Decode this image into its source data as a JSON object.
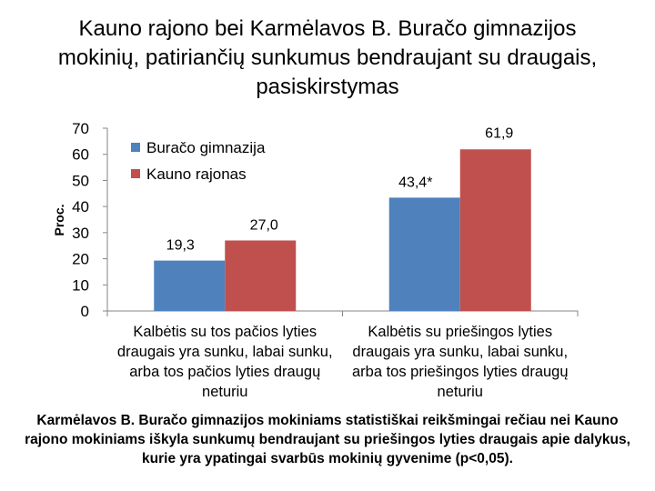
{
  "chart_data": {
    "type": "bar",
    "title": "Kauno rajono bei Karmėlavos B. Buračo gimnazijos mokinių, patiriančių sunkumus bendraujant su draugais, pasiskirstymas",
    "ylabel": "Proc.",
    "xlabel": "",
    "ylim": [
      0,
      70
    ],
    "yticks": [
      0,
      10,
      20,
      30,
      40,
      50,
      60,
      70
    ],
    "categories": [
      [
        "Kalbėtis su tos pačios lyties",
        "draugais yra sunku, labai sunku,",
        "arba tos pačios lyties draugų",
        "neturiu"
      ],
      [
        "Kalbėtis su priešingos lyties",
        "draugais yra sunku, labai sunku,",
        "arba tos priešingos lyties draugų",
        "neturiu"
      ]
    ],
    "series": [
      {
        "name": "Buračo gimnazija",
        "color": "#4f81bd",
        "values": [
          19.3,
          43.4
        ],
        "labels": [
          "19,3",
          "43,4*"
        ]
      },
      {
        "name": "Kauno rajonas",
        "color": "#c0504d",
        "values": [
          27.0,
          61.9
        ],
        "labels": [
          "27,0",
          "61,9"
        ]
      }
    ],
    "legend": "top-left",
    "grid": false,
    "note": "Karmėlavos B. Buračo gimnazijos mokiniams statistiškai reikšmingai rečiau nei Kauno rajono mokiniams iškyla sunkumų bendraujant su priešingos lyties draugais apie dalykus, kurie yra ypatingai svarbūs mokinių gyvenime (p<0,05)."
  }
}
